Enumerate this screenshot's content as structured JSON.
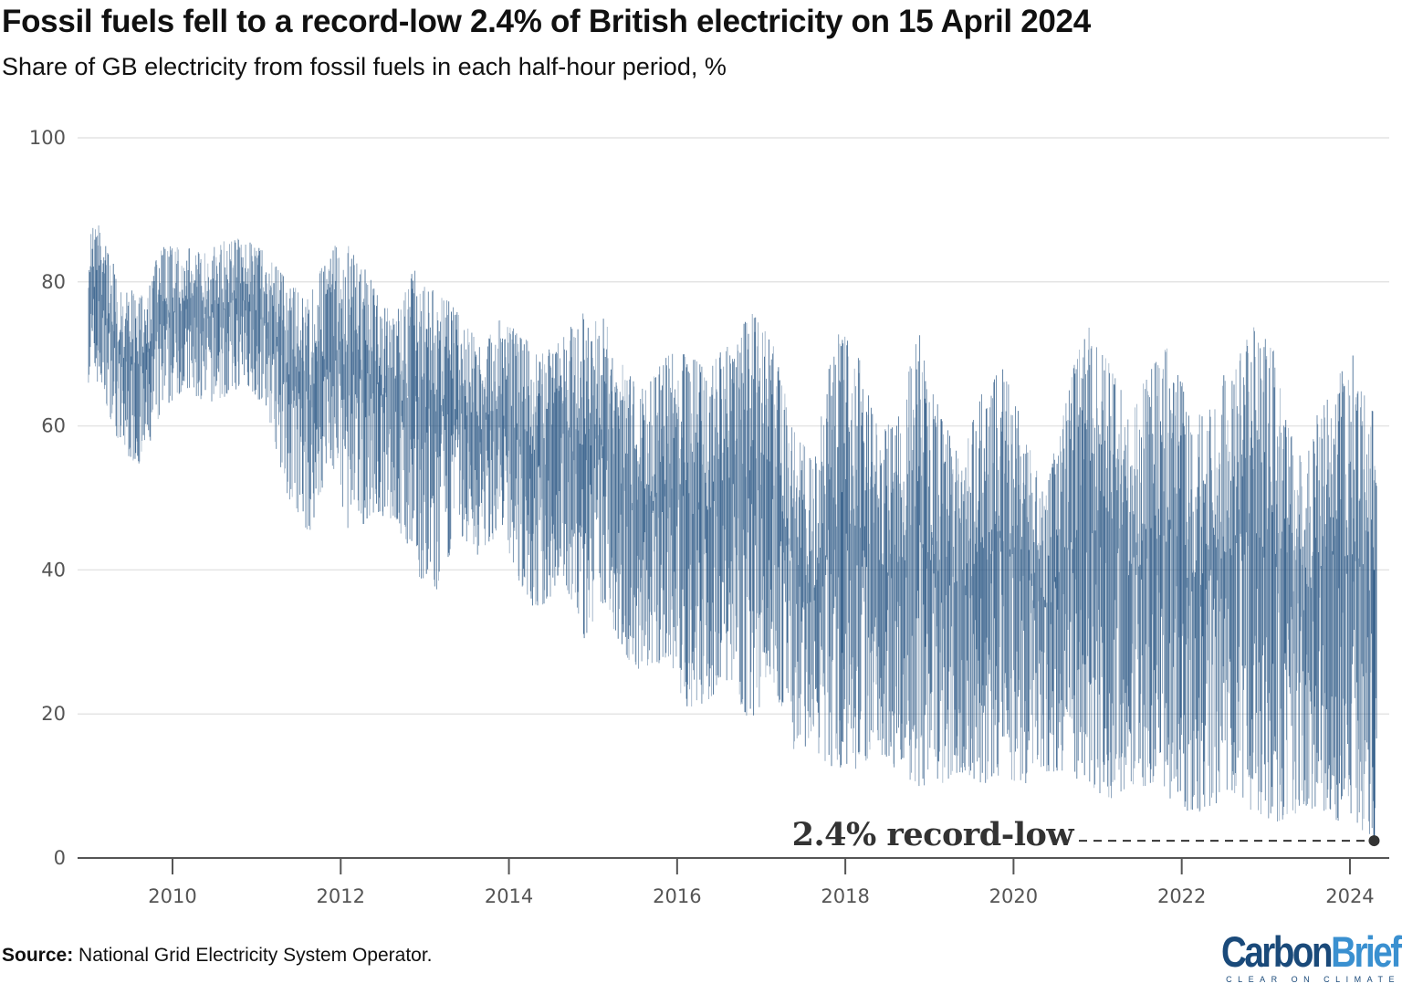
{
  "title": "Fossil fuels fell to a record-low 2.4% of British electricity on 15 April 2024",
  "subtitle": "Share of GB electricity from fossil fuels in each half-hour period, %",
  "source_label": "Source:",
  "source_text": "National Grid Electricity System Operator.",
  "logo": {
    "word1": "Carbon",
    "word2": "Brief",
    "tagline": "CLEAR ON CLIMATE"
  },
  "colors": {
    "series": "#1f4e7e",
    "annotation": "#333333",
    "grid": "#e4e4e4",
    "axis": "#555555"
  },
  "chart_data": {
    "type": "line",
    "title": "Fossil fuels fell to a record-low 2.4% of British electricity on 15 April 2024",
    "subtitle": "Share of GB electricity from fossil fuels in each half-hour period, %",
    "xlabel": "",
    "ylabel": "",
    "xlim": [
      2009.0,
      2024.45
    ],
    "ylim": [
      0,
      100
    ],
    "yticks": [
      0,
      20,
      40,
      60,
      80,
      100
    ],
    "xticks": [
      "2010",
      "2012",
      "2014",
      "2016",
      "2018",
      "2020",
      "2022",
      "2024"
    ],
    "grid": "horizontal",
    "note": "Quarterly approximate range (min/max) of half-hourly values",
    "envelope": [
      {
        "period": "2009-Q1",
        "min": 66,
        "max": 88
      },
      {
        "period": "2009-Q2",
        "min": 57,
        "max": 80
      },
      {
        "period": "2009-Q3",
        "min": 54,
        "max": 78
      },
      {
        "period": "2009-Q4",
        "min": 62,
        "max": 85
      },
      {
        "period": "2010-Q1",
        "min": 65,
        "max": 85
      },
      {
        "period": "2010-Q2",
        "min": 63,
        "max": 84
      },
      {
        "period": "2010-Q3",
        "min": 64,
        "max": 86
      },
      {
        "period": "2010-Q4",
        "min": 66,
        "max": 86
      },
      {
        "period": "2011-Q1",
        "min": 62,
        "max": 84
      },
      {
        "period": "2011-Q2",
        "min": 50,
        "max": 80
      },
      {
        "period": "2011-Q3",
        "min": 45,
        "max": 78
      },
      {
        "period": "2011-Q4",
        "min": 55,
        "max": 85
      },
      {
        "period": "2012-Q1",
        "min": 44,
        "max": 85
      },
      {
        "period": "2012-Q2",
        "min": 48,
        "max": 80
      },
      {
        "period": "2012-Q3",
        "min": 47,
        "max": 75
      },
      {
        "period": "2012-Q4",
        "min": 40,
        "max": 82
      },
      {
        "period": "2013-Q1",
        "min": 36,
        "max": 80
      },
      {
        "period": "2013-Q2",
        "min": 45,
        "max": 76
      },
      {
        "period": "2013-Q3",
        "min": 42,
        "max": 72
      },
      {
        "period": "2013-Q4",
        "min": 45,
        "max": 75
      },
      {
        "period": "2014-Q1",
        "min": 38,
        "max": 73
      },
      {
        "period": "2014-Q2",
        "min": 33,
        "max": 70
      },
      {
        "period": "2014-Q3",
        "min": 40,
        "max": 72
      },
      {
        "period": "2014-Q4",
        "min": 30,
        "max": 76
      },
      {
        "period": "2015-Q1",
        "min": 35,
        "max": 75
      },
      {
        "period": "2015-Q2",
        "min": 28,
        "max": 68
      },
      {
        "period": "2015-Q3",
        "min": 25,
        "max": 65
      },
      {
        "period": "2015-Q4",
        "min": 28,
        "max": 70
      },
      {
        "period": "2016-Q1",
        "min": 20,
        "max": 70
      },
      {
        "period": "2016-Q2",
        "min": 22,
        "max": 68
      },
      {
        "period": "2016-Q3",
        "min": 25,
        "max": 72
      },
      {
        "period": "2016-Q4",
        "min": 18,
        "max": 76
      },
      {
        "period": "2017-Q1",
        "min": 25,
        "max": 72
      },
      {
        "period": "2017-Q2",
        "min": 15,
        "max": 60
      },
      {
        "period": "2017-Q3",
        "min": 15,
        "max": 55
      },
      {
        "period": "2017-Q4",
        "min": 12,
        "max": 73
      },
      {
        "period": "2018-Q1",
        "min": 12,
        "max": 72
      },
      {
        "period": "2018-Q2",
        "min": 15,
        "max": 60
      },
      {
        "period": "2018-Q3",
        "min": 12,
        "max": 62
      },
      {
        "period": "2018-Q4",
        "min": 10,
        "max": 73
      },
      {
        "period": "2019-Q1",
        "min": 10,
        "max": 62
      },
      {
        "period": "2019-Q2",
        "min": 12,
        "max": 55
      },
      {
        "period": "2019-Q3",
        "min": 10,
        "max": 65
      },
      {
        "period": "2019-Q4",
        "min": 11,
        "max": 68
      },
      {
        "period": "2020-Q1",
        "min": 10,
        "max": 60
      },
      {
        "period": "2020-Q2",
        "min": 12,
        "max": 50
      },
      {
        "period": "2020-Q3",
        "min": 12,
        "max": 65
      },
      {
        "period": "2020-Q4",
        "min": 10,
        "max": 74
      },
      {
        "period": "2021-Q1",
        "min": 8,
        "max": 70
      },
      {
        "period": "2021-Q2",
        "min": 10,
        "max": 62
      },
      {
        "period": "2021-Q3",
        "min": 10,
        "max": 68
      },
      {
        "period": "2021-Q4",
        "min": 8,
        "max": 72
      },
      {
        "period": "2022-Q1",
        "min": 6,
        "max": 62
      },
      {
        "period": "2022-Q2",
        "min": 7,
        "max": 65
      },
      {
        "period": "2022-Q3",
        "min": 8,
        "max": 70
      },
      {
        "period": "2022-Q4",
        "min": 6,
        "max": 74
      },
      {
        "period": "2023-Q1",
        "min": 5,
        "max": 70
      },
      {
        "period": "2023-Q2",
        "min": 6,
        "max": 55
      },
      {
        "period": "2023-Q3",
        "min": 7,
        "max": 63
      },
      {
        "period": "2023-Q4",
        "min": 5,
        "max": 68
      },
      {
        "period": "2024-Q1",
        "min": 4,
        "max": 72
      },
      {
        "period": "2024-Q2",
        "min": 2.4,
        "max": 55
      }
    ],
    "record_low": {
      "date": "2024-04-15",
      "value": 2.4
    },
    "annotations": [
      {
        "text": "2.4% record-low",
        "date": "2024-04-15",
        "value": 2.4
      }
    ]
  }
}
